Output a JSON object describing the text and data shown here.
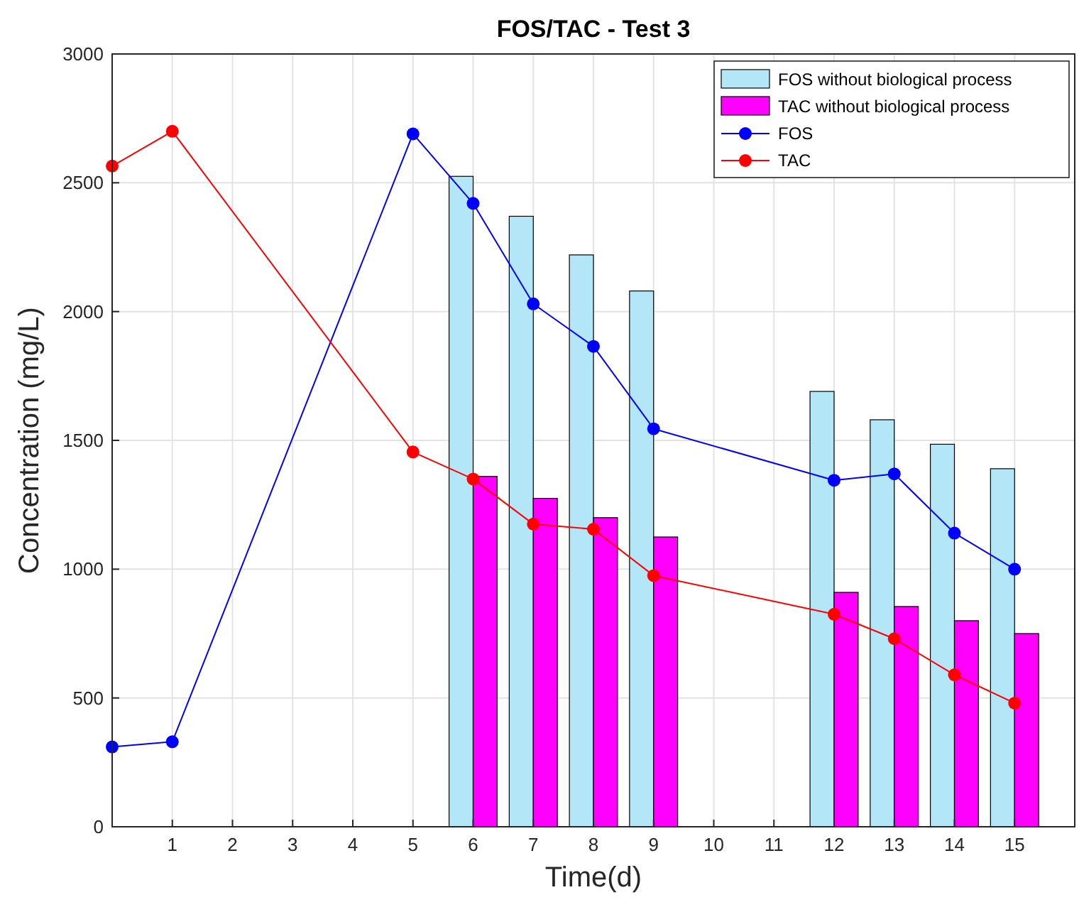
{
  "chart_data": {
    "type": "bar",
    "title": "FOS/TAC - Test 3",
    "xlabel": "Time(d)",
    "ylabel": "Concentration (mg/L)",
    "xlim": [
      0,
      16
    ],
    "xticks": [
      1,
      2,
      3,
      4,
      5,
      6,
      7,
      8,
      9,
      10,
      11,
      12,
      13,
      14,
      15
    ],
    "ylim": [
      0,
      3000
    ],
    "yticks": [
      0,
      500,
      1000,
      1500,
      2000,
      2500,
      3000
    ],
    "grid": true,
    "legend": "top right",
    "marker": "circle",
    "series": [
      {
        "name": "FOS without biological process",
        "color": "#b3e6f7",
        "x": [
          6,
          7,
          8,
          9,
          12,
          13,
          14,
          15
        ],
        "values": [
          2525,
          2370,
          2220,
          2080,
          1690,
          1580,
          1485,
          1390
        ]
      },
      {
        "name": "TAC without biological process",
        "color": "#ff00ff",
        "x": [
          6,
          7,
          8,
          9,
          12,
          13,
          14,
          15
        ],
        "values": [
          1360,
          1275,
          1200,
          1125,
          910,
          855,
          800,
          750
        ]
      },
      {
        "name": "FOS",
        "type": "line",
        "color": "#0000ff",
        "x": [
          0,
          1,
          5,
          6,
          7,
          8,
          9,
          12,
          13,
          14,
          15
        ],
        "values": [
          310,
          330,
          2690,
          2420,
          2030,
          1865,
          1545,
          1345,
          1370,
          1140,
          1000
        ]
      },
      {
        "name": "TAC",
        "type": "line",
        "color": "#ff0000",
        "x": [
          0,
          1,
          5,
          6,
          7,
          8,
          9,
          12,
          13,
          14,
          15
        ],
        "values": [
          2565,
          2700,
          1455,
          1350,
          1175,
          1155,
          975,
          825,
          730,
          590,
          480
        ]
      }
    ]
  }
}
